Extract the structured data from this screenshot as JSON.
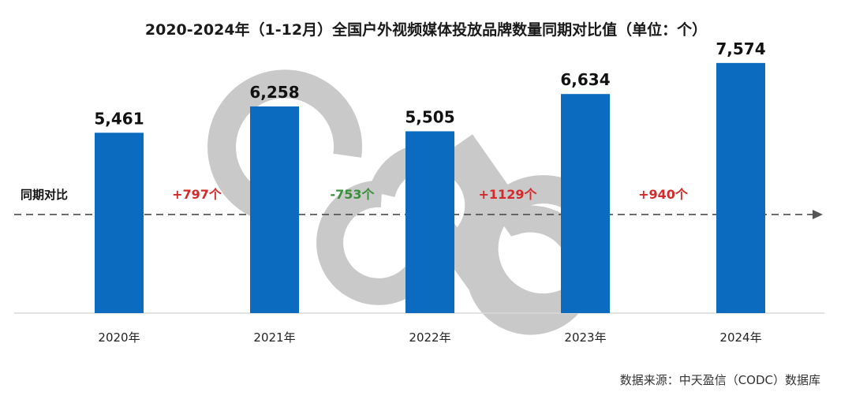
{
  "chart_data": {
    "type": "bar",
    "title": "2020-2024年（1-12月）全国户外视频媒体投放品牌数量同期对比值（单位：个）",
    "categories": [
      "2020年",
      "2021年",
      "2022年",
      "2023年",
      "2024年"
    ],
    "values": [
      5461,
      6258,
      5505,
      6634,
      7574
    ],
    "value_labels": [
      "5,461",
      "6,258",
      "5,505",
      "6,634",
      "7,574"
    ],
    "ylim": [
      0,
      8000
    ],
    "xlabel": "",
    "ylabel": "",
    "grid": false,
    "bar_color": "#0B6BBF",
    "comparison": {
      "label": "同期对比",
      "deltas": [
        {
          "text": "+797个",
          "color": "#D42A2A"
        },
        {
          "text": "-753个",
          "color": "#3A8F3A"
        },
        {
          "text": "+1129个",
          "color": "#D42A2A"
        },
        {
          "text": "+940个",
          "color": "#D42A2A"
        }
      ]
    },
    "source": "数据来源：中天盈信（CODC）数据库",
    "watermark": "CODC"
  }
}
